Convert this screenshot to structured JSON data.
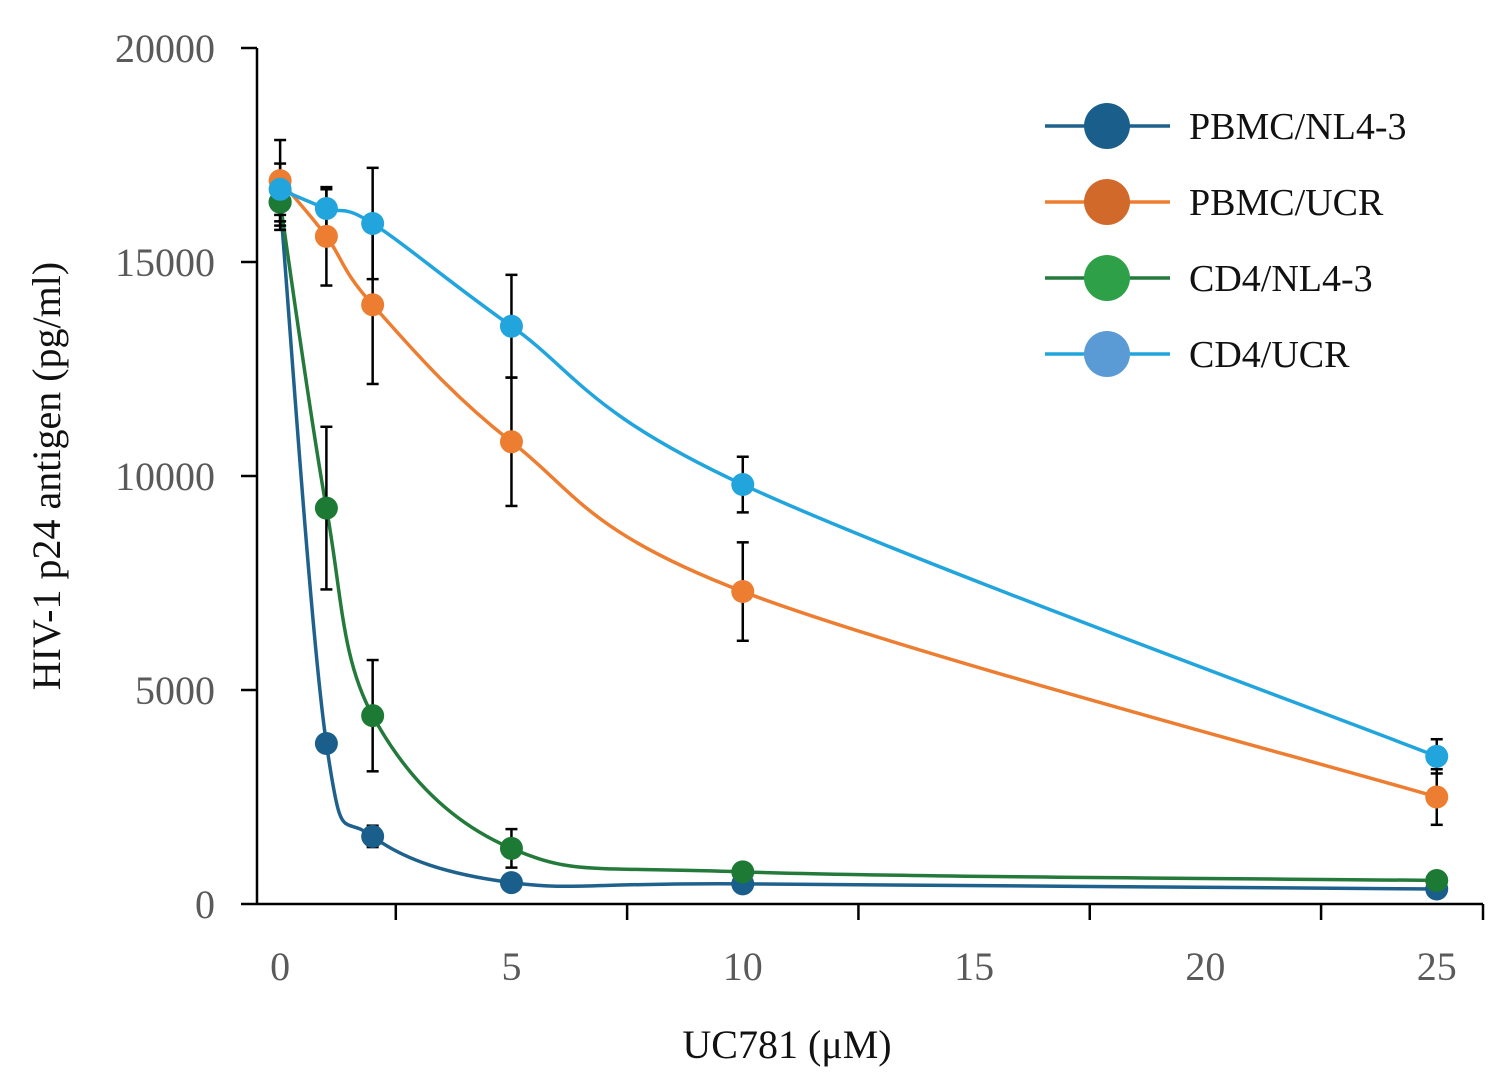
{
  "chart_data": {
    "type": "line",
    "title": "",
    "xlabel": "UC781 (μM)",
    "ylabel": "HIV-1 p24 antigen (pg/ml)",
    "xlim": [
      -0.5,
      26
    ],
    "ylim": [
      0,
      20000
    ],
    "xticks": [
      0,
      5,
      10,
      15,
      20,
      25
    ],
    "yticks": [
      0,
      5000,
      10000,
      15000,
      20000
    ],
    "xtick_labels": [
      "0",
      "5",
      "10",
      "15",
      "20",
      "25"
    ],
    "ytick_labels": [
      "0",
      "5000",
      "10000",
      "15000",
      "20000"
    ],
    "grid": false,
    "legend_position": "top-right",
    "x": [
      0,
      1,
      2,
      5,
      10,
      25
    ],
    "series": [
      {
        "name": "PBMC/NL4-3",
        "line_color": "#1f618d",
        "marker_color": "#1a5e8c",
        "legend_marker_color": "#1a5e8c",
        "values": [
          16400,
          3750,
          1580,
          500,
          470,
          350
        ],
        "errors": [
          650,
          0,
          250,
          0,
          0,
          0
        ]
      },
      {
        "name": "PBMC/UCR",
        "line_color": "#ed7d31",
        "marker_color": "#ed7d31",
        "legend_marker_color": "#d0692a",
        "values": [
          16900,
          15600,
          14000,
          10800,
          7300,
          2500
        ],
        "errors": [
          950,
          1150,
          1850,
          1500,
          1150,
          650
        ]
      },
      {
        "name": "CD4/NL4-3",
        "line_color": "#237a3a",
        "marker_color": "#1d7a35",
        "legend_marker_color": "#2ea148",
        "values": [
          16400,
          9250,
          4400,
          1300,
          750,
          550
        ],
        "errors": [
          550,
          1900,
          1300,
          450,
          0,
          0
        ]
      },
      {
        "name": "CD4/UCR",
        "line_color": "#22a5dd",
        "marker_color": "#22a5dd",
        "legend_marker_color": "#5b9bd5",
        "values": [
          16700,
          16250,
          15900,
          13500,
          9800,
          3450
        ],
        "errors": [
          600,
          450,
          1300,
          1200,
          650,
          400
        ]
      }
    ]
  }
}
